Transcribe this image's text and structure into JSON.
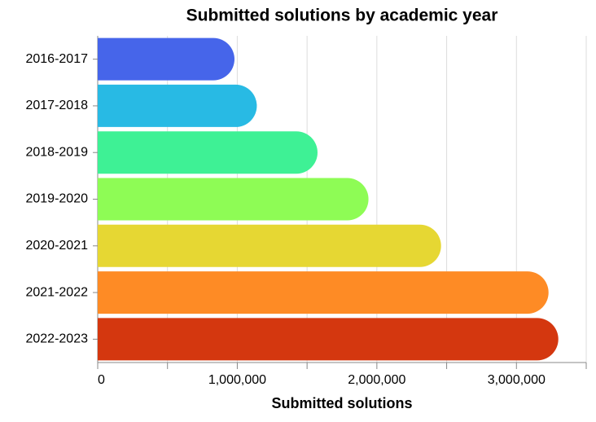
{
  "chart_data": {
    "type": "bar",
    "orientation": "horizontal",
    "title": "Submitted solutions by academic year",
    "x_label": "Submitted solutions",
    "categories": [
      "2016-2017",
      "2017-2018",
      "2018-2019",
      "2019-2020",
      "2020-2021",
      "2021-2022",
      "2022-2023"
    ],
    "values": [
      980000,
      1140000,
      1575000,
      1940000,
      2460000,
      3230000,
      3300000
    ],
    "colors": [
      "#4665ea",
      "#28bae4",
      "#3ef195",
      "#8efc55",
      "#e6d733",
      "#fe8b25",
      "#d4370f"
    ],
    "xlim": [
      0,
      3500000
    ],
    "xticks": [
      0,
      {
        "value": 1000000,
        "label": "1,000,000"
      },
      {
        "value": 2000000,
        "label": "2,000,000"
      },
      {
        "value": 3000000,
        "label": "3,000,000"
      }
    ],
    "xgrid": [
      0,
      500000,
      1000000,
      1500000,
      2000000,
      2500000,
      3000000,
      3500000
    ],
    "grid": true
  }
}
